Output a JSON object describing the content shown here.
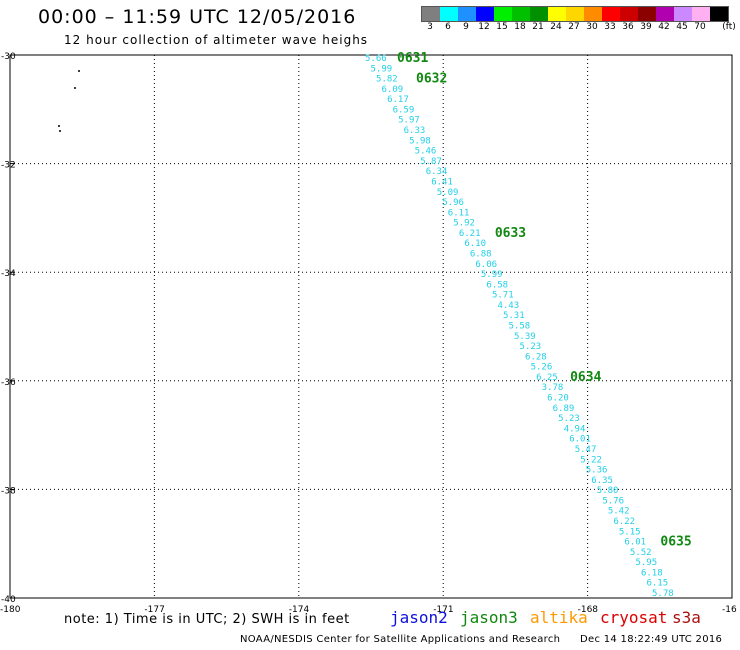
{
  "header": {
    "title": "00:00 – 11:59 UTC 12/05/2016",
    "subtitle": "12 hour collection of altimeter wave heighs"
  },
  "legend": {
    "unit": "(ft)",
    "items": [
      {
        "label": "3",
        "color": "#7f7f7f"
      },
      {
        "label": "6",
        "color": "#00ffff"
      },
      {
        "label": "9",
        "color": "#1e90ff"
      },
      {
        "label": "12",
        "color": "#0000ff"
      },
      {
        "label": "15",
        "color": "#00ee00"
      },
      {
        "label": "18",
        "color": "#00c000"
      },
      {
        "label": "21",
        "color": "#009000"
      },
      {
        "label": "24",
        "color": "#ffff00"
      },
      {
        "label": "27",
        "color": "#ffd700"
      },
      {
        "label": "30",
        "color": "#ff8c00"
      },
      {
        "label": "33",
        "color": "#ff0000"
      },
      {
        "label": "36",
        "color": "#cc0000"
      },
      {
        "label": "39",
        "color": "#8b0000"
      },
      {
        "label": "42",
        "color": "#b000b0"
      },
      {
        "label": "45",
        "color": "#cc88ff"
      },
      {
        "label": "70",
        "color": "#ffb0f0"
      },
      {
        "label": "",
        "color": "#000000"
      }
    ]
  },
  "map": {
    "lat_labels": [
      "-30",
      "-32",
      "-34",
      "-36",
      "-38",
      "-40"
    ],
    "lon_labels": [
      "-180",
      "-177",
      "-174",
      "-171",
      "-168",
      "-16"
    ],
    "lat_range": [
      -40,
      -30
    ],
    "lon_range": [
      -180,
      -165
    ],
    "track_color": "#22d0e8",
    "time_color": "#118811",
    "track_values": [
      "5.66",
      "5.99",
      "5.82",
      "6.09",
      "6.17",
      "6.59",
      "5.97",
      "6.33",
      "5.98",
      "5.46",
      "5.87",
      "6.34",
      "6.41",
      "5.09",
      "5.96",
      "6.11",
      "5.92",
      "6.21",
      "6.10",
      "6.88",
      "6.06",
      "5.99",
      "6.58",
      "5.71",
      "4.43",
      "5.31",
      "5.58",
      "5.39",
      "5.23",
      "6.28",
      "5.26",
      "6.25",
      "3.78",
      "6.20",
      "6.89",
      "5.23",
      "4.94",
      "6.01",
      "5.47",
      "5.22",
      "5.36",
      "6.35",
      "5.80",
      "5.76",
      "5.42",
      "6.22",
      "5.15",
      "6.01",
      "5.52",
      "5.95",
      "6.18",
      "6.15",
      "5.78"
    ],
    "time_labels": [
      "0631",
      "0632",
      "0633",
      "0634",
      "0635"
    ]
  },
  "footer": {
    "note": "note: 1) Time is in UTC; 2) SWH is in feet",
    "satellites": [
      {
        "name": "jason2",
        "color": "#1010dd"
      },
      {
        "name": "jason3",
        "color": "#108810"
      },
      {
        "name": "altika",
        "color": "#ff9900"
      },
      {
        "name": "cryosat",
        "color": "#dd0000"
      },
      {
        "name": "s3a",
        "color": "#aa1111"
      }
    ],
    "credit": "NOAA/NESDIS Center for Satellite Applications and Research",
    "timestamp": "Dec 14 18:22:49 UTC 2016"
  }
}
